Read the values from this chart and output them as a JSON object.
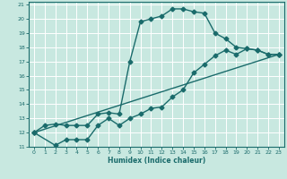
{
  "xlabel": "Humidex (Indice chaleur)",
  "xlim": [
    -0.5,
    23.5
  ],
  "ylim": [
    11,
    21.2
  ],
  "xticks": [
    0,
    1,
    2,
    3,
    4,
    5,
    6,
    7,
    8,
    9,
    10,
    11,
    12,
    13,
    14,
    15,
    16,
    17,
    18,
    19,
    20,
    21,
    22,
    23
  ],
  "yticks": [
    11,
    12,
    13,
    14,
    15,
    16,
    17,
    18,
    19,
    20,
    21
  ],
  "background_color": "#c8e8e0",
  "grid_color": "#ffffff",
  "line_color": "#1a6b6b",
  "line1_x": [
    0,
    1,
    2,
    3,
    4,
    5,
    6,
    7,
    8,
    9,
    10,
    11,
    12,
    13,
    14,
    15,
    16,
    17,
    18,
    19,
    20,
    21,
    22,
    23
  ],
  "line1_y": [
    12.0,
    12.5,
    12.6,
    12.5,
    12.5,
    12.5,
    13.3,
    13.4,
    13.3,
    17.0,
    19.8,
    20.0,
    20.2,
    20.7,
    20.7,
    20.5,
    20.4,
    19.0,
    18.6,
    18.0,
    17.9,
    17.8,
    17.5,
    17.5
  ],
  "line2_x": [
    0,
    2,
    3,
    4,
    5,
    6,
    7,
    8,
    9,
    10,
    11,
    12,
    13,
    14,
    15,
    16,
    17,
    18,
    19,
    20,
    21,
    22,
    23
  ],
  "line2_y": [
    12.0,
    11.1,
    11.5,
    11.5,
    11.5,
    12.5,
    13.0,
    12.5,
    13.0,
    13.3,
    13.7,
    13.8,
    14.5,
    15.0,
    16.2,
    16.8,
    17.4,
    17.8,
    17.5,
    17.9,
    17.8,
    17.5,
    17.5
  ],
  "line3_x": [
    0,
    23
  ],
  "line3_y": [
    12.0,
    17.5
  ],
  "marker_size": 2.5,
  "linewidth": 1.0
}
